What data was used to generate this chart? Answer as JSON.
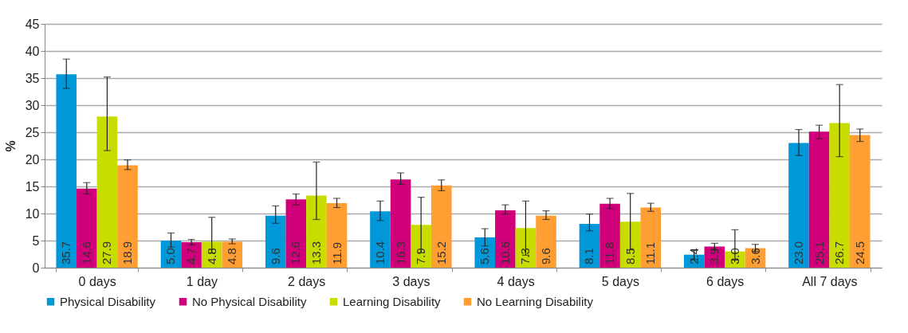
{
  "chart_data": {
    "type": "bar",
    "ylabel": "%",
    "categories": [
      "0 days",
      "1 day",
      "2 days",
      "3 days",
      "4 days",
      "5 days",
      "6 days",
      "All 7 days"
    ],
    "series": [
      {
        "name": "Physical Disability",
        "color": "#0098d8",
        "values": [
          35.7,
          5.0,
          9.6,
          10.4,
          5.6,
          8.1,
          2.4,
          23.0
        ],
        "value_labels": [
          "35.7",
          "5.0",
          "9.6",
          "10.4",
          "5.6",
          "8.1",
          "2.4",
          "23.0"
        ],
        "errors": [
          [
            33.1,
            38.5
          ],
          [
            3.8,
            6.4
          ],
          [
            8.2,
            11.4
          ],
          [
            8.7,
            12.3
          ],
          [
            4.0,
            7.2
          ],
          [
            6.8,
            9.9
          ],
          [
            1.5,
            3.2
          ],
          [
            20.7,
            25.5
          ]
        ]
      },
      {
        "name": "No Physical Disability",
        "color": "#d0007a",
        "values": [
          14.6,
          4.7,
          12.6,
          16.3,
          10.6,
          11.8,
          3.9,
          25.1
        ],
        "value_labels": [
          "14.6",
          "4.7",
          "12.6",
          "16.3",
          "10.6",
          "11.8",
          "3.9",
          "25.1"
        ],
        "errors": [
          [
            13.6,
            15.7
          ],
          [
            4.2,
            5.2
          ],
          [
            11.6,
            13.6
          ],
          [
            15.4,
            17.5
          ],
          [
            9.9,
            11.6
          ],
          [
            10.9,
            12.8
          ],
          [
            3.3,
            4.5
          ],
          [
            23.8,
            26.3
          ]
        ]
      },
      {
        "name": "Learning Disability",
        "color": "#c8dc00",
        "values": [
          27.9,
          4.8,
          13.3,
          7.9,
          7.3,
          8.5,
          3.0,
          26.7
        ],
        "value_labels": [
          "27.9",
          "4.8",
          "13.3",
          "7.9",
          "7.3",
          "8.5",
          "3.0",
          "26.7"
        ],
        "errors": [
          [
            21.6,
            35.2
          ],
          [
            2.7,
            9.3
          ],
          [
            8.9,
            19.5
          ],
          [
            2.8,
            13.0
          ],
          [
            2.3,
            12.3
          ],
          [
            3.3,
            13.7
          ],
          [
            1.4,
            7.0
          ],
          [
            20.5,
            33.8
          ]
        ]
      },
      {
        "name": "No Learning Disability",
        "color": "#ff9e32",
        "values": [
          18.9,
          4.8,
          11.9,
          15.2,
          9.6,
          11.1,
          3.6,
          24.5
        ],
        "value_labels": [
          "18.9",
          "4.8",
          "11.9",
          "15.2",
          "9.6",
          "11.1",
          "3.6",
          "24.5"
        ],
        "errors": [
          [
            18.1,
            19.9
          ],
          [
            4.4,
            5.3
          ],
          [
            11.1,
            12.8
          ],
          [
            14.2,
            16.2
          ],
          [
            8.9,
            10.5
          ],
          [
            10.4,
            11.9
          ],
          [
            3.0,
            4.3
          ],
          [
            23.3,
            25.6
          ]
        ]
      }
    ],
    "ylim": [
      0,
      45
    ],
    "yticks": [
      0,
      5,
      10,
      15,
      20,
      25,
      30,
      35,
      40,
      45
    ],
    "grid": "y",
    "legend": "bottom"
  }
}
